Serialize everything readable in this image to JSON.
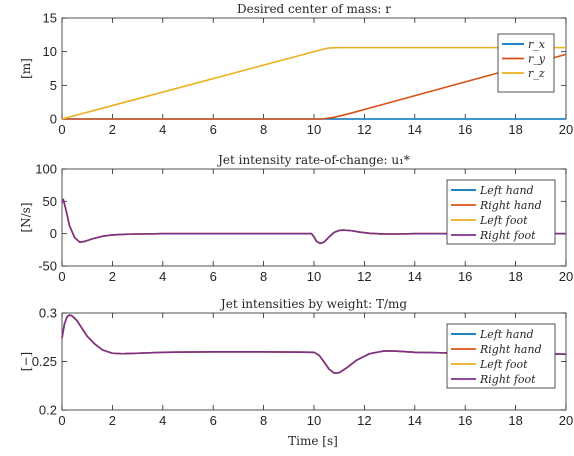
{
  "xlabel": "Time [s]",
  "chart_data": [
    {
      "type": "line",
      "title": "Desired center of mass: r",
      "ylabel": "[m]",
      "xlim": [
        0,
        20
      ],
      "ylim": [
        0,
        15
      ],
      "xticks": [
        0,
        2,
        4,
        6,
        8,
        10,
        12,
        14,
        16,
        18,
        20
      ],
      "yticks": [
        0,
        5,
        10,
        15
      ],
      "ytick_labels": [
        "0",
        "5",
        "10",
        "15"
      ],
      "legend_position": "top-right",
      "series": [
        {
          "name": "r_x",
          "color": "#0072BD",
          "x": [
            0,
            20
          ],
          "y": [
            0,
            0
          ]
        },
        {
          "name": "r_y",
          "color": "#D95319",
          "x": [
            0,
            10.3,
            10.8,
            11.5,
            20
          ],
          "y": [
            0,
            0,
            0.25,
            0.9,
            9.6
          ]
        },
        {
          "name": "r_z",
          "color": "#EDB120",
          "x": [
            0,
            10.3,
            10.6,
            11.0,
            20
          ],
          "y": [
            0,
            10.3,
            10.55,
            10.6,
            10.6
          ]
        }
      ]
    },
    {
      "type": "line",
      "title": "Jet intensity rate-of-change: u₁*",
      "ylabel": "[N/s]",
      "xlim": [
        0,
        20
      ],
      "ylim": [
        -50,
        100
      ],
      "xticks": [
        0,
        2,
        4,
        6,
        8,
        10,
        12,
        14,
        16,
        18,
        20
      ],
      "yticks": [
        -50,
        0,
        50,
        100
      ],
      "ytick_labels": [
        "-50",
        "0",
        "50",
        "100"
      ],
      "legend_position": "top-right",
      "series": [
        {
          "name": "Left hand",
          "color": "#0072BD",
          "x": [
            0,
            0.05,
            0.15,
            0.3,
            0.5,
            0.7,
            0.9,
            1.2,
            1.6,
            2.0,
            2.5,
            3.0,
            4.0,
            6.0,
            8.0,
            9.9,
            10.0,
            10.1,
            10.25,
            10.4,
            10.6,
            10.8,
            11.0,
            11.2,
            11.5,
            11.8,
            12.2,
            12.7,
            13.2,
            14.0,
            16.0,
            18.0,
            20.0
          ],
          "y": [
            48,
            53,
            38,
            12,
            -6,
            -13,
            -12,
            -8,
            -4,
            -2,
            -1,
            -0.5,
            0,
            0,
            0,
            0,
            -5,
            -12,
            -15,
            -13,
            -5,
            2,
            5,
            5.5,
            4.5,
            2.5,
            0.5,
            -0.5,
            -0.5,
            0,
            0,
            0,
            0
          ]
        },
        {
          "name": "Right hand",
          "color": "#D95319",
          "x": [
            0,
            0.05,
            0.15,
            0.3,
            0.5,
            0.7,
            0.9,
            1.2,
            1.6,
            2.0,
            2.5,
            3.0,
            4.0,
            6.0,
            8.0,
            9.9,
            10.0,
            10.1,
            10.25,
            10.4,
            10.6,
            10.8,
            11.0,
            11.2,
            11.5,
            11.8,
            12.2,
            12.7,
            13.2,
            14.0,
            16.0,
            18.0,
            20.0
          ],
          "y": [
            48,
            53,
            38,
            12,
            -6,
            -13,
            -12,
            -8,
            -4,
            -2,
            -1,
            -0.5,
            0,
            0,
            0,
            0,
            -5,
            -12,
            -15,
            -13,
            -5,
            2,
            5,
            5.5,
            4.5,
            2.5,
            0.5,
            -0.5,
            -0.5,
            0,
            0,
            0,
            0
          ]
        },
        {
          "name": "Left foot",
          "color": "#EDB120",
          "x": [
            0,
            0.05,
            0.15,
            0.3,
            0.5,
            0.7,
            0.9,
            1.2,
            1.6,
            2.0,
            2.5,
            3.0,
            4.0,
            6.0,
            8.0,
            9.9,
            10.0,
            10.1,
            10.25,
            10.4,
            10.6,
            10.8,
            11.0,
            11.2,
            11.5,
            11.8,
            12.2,
            12.7,
            13.2,
            14.0,
            16.0,
            18.0,
            20.0
          ],
          "y": [
            48,
            53,
            38,
            12,
            -6,
            -13,
            -12,
            -8,
            -4,
            -2,
            -1,
            -0.5,
            0,
            0,
            0,
            0,
            -5,
            -12,
            -15,
            -13,
            -5,
            2,
            5,
            5.5,
            4.5,
            2.5,
            0.5,
            -0.5,
            -0.5,
            0,
            0,
            0,
            0
          ]
        },
        {
          "name": "Right foot",
          "color": "#7E2F8E",
          "x": [
            0,
            0.05,
            0.15,
            0.3,
            0.5,
            0.7,
            0.9,
            1.2,
            1.6,
            2.0,
            2.5,
            3.0,
            4.0,
            6.0,
            8.0,
            9.9,
            10.0,
            10.1,
            10.25,
            10.4,
            10.6,
            10.8,
            11.0,
            11.2,
            11.5,
            11.8,
            12.2,
            12.7,
            13.2,
            14.0,
            16.0,
            18.0,
            20.0
          ],
          "y": [
            48,
            53,
            38,
            12,
            -6,
            -13,
            -12,
            -8,
            -4,
            -2,
            -1,
            -0.5,
            0,
            0,
            0,
            0,
            -5,
            -12,
            -15,
            -13,
            -5,
            2,
            5,
            5.5,
            4.5,
            2.5,
            0.5,
            -0.5,
            -0.5,
            0,
            0,
            0,
            0
          ]
        }
      ]
    },
    {
      "type": "line",
      "title": "Jet intensities by weight: T/mg",
      "ylabel": "[−]",
      "xlim": [
        0,
        20
      ],
      "ylim": [
        0.2,
        0.3
      ],
      "xticks": [
        0,
        2,
        4,
        6,
        8,
        10,
        12,
        14,
        16,
        18,
        20
      ],
      "yticks": [
        0.2,
        0.25,
        0.3
      ],
      "ytick_labels": [
        "0.2",
        "0.25",
        "0.3"
      ],
      "legend_position": "top-right",
      "series": [
        {
          "name": "Left hand",
          "color": "#0072BD",
          "x": [
            0,
            0.1,
            0.2,
            0.3,
            0.4,
            0.6,
            0.8,
            1.0,
            1.3,
            1.6,
            2.0,
            2.4,
            3.0,
            4.0,
            6.0,
            8.0,
            10.0,
            10.2,
            10.4,
            10.6,
            10.8,
            11.0,
            11.3,
            11.7,
            12.2,
            12.8,
            13.4,
            14.0,
            16.0,
            18.0,
            20.0
          ],
          "y": [
            0.274,
            0.289,
            0.296,
            0.298,
            0.297,
            0.292,
            0.284,
            0.276,
            0.268,
            0.262,
            0.2585,
            0.258,
            0.2585,
            0.2595,
            0.26,
            0.26,
            0.2595,
            0.2565,
            0.2495,
            0.242,
            0.238,
            0.2385,
            0.2435,
            0.2515,
            0.258,
            0.261,
            0.2605,
            0.2595,
            0.2585,
            0.258,
            0.2575
          ]
        },
        {
          "name": "Right hand",
          "color": "#D95319",
          "x": [
            0,
            0.1,
            0.2,
            0.3,
            0.4,
            0.6,
            0.8,
            1.0,
            1.3,
            1.6,
            2.0,
            2.4,
            3.0,
            4.0,
            6.0,
            8.0,
            10.0,
            10.2,
            10.4,
            10.6,
            10.8,
            11.0,
            11.3,
            11.7,
            12.2,
            12.8,
            13.4,
            14.0,
            16.0,
            18.0,
            20.0
          ],
          "y": [
            0.274,
            0.289,
            0.296,
            0.298,
            0.297,
            0.292,
            0.284,
            0.276,
            0.268,
            0.262,
            0.2585,
            0.258,
            0.2585,
            0.2595,
            0.26,
            0.26,
            0.2595,
            0.2565,
            0.2495,
            0.242,
            0.238,
            0.2385,
            0.2435,
            0.2515,
            0.258,
            0.261,
            0.2605,
            0.2595,
            0.2585,
            0.258,
            0.2575
          ]
        },
        {
          "name": "Left foot",
          "color": "#EDB120",
          "x": [
            0,
            0.1,
            0.2,
            0.3,
            0.4,
            0.6,
            0.8,
            1.0,
            1.3,
            1.6,
            2.0,
            2.4,
            3.0,
            4.0,
            6.0,
            8.0,
            10.0,
            10.2,
            10.4,
            10.6,
            10.8,
            11.0,
            11.3,
            11.7,
            12.2,
            12.8,
            13.4,
            14.0,
            16.0,
            18.0,
            20.0
          ],
          "y": [
            0.274,
            0.289,
            0.296,
            0.298,
            0.297,
            0.292,
            0.284,
            0.276,
            0.268,
            0.262,
            0.2585,
            0.258,
            0.2585,
            0.2595,
            0.26,
            0.26,
            0.2595,
            0.2565,
            0.2495,
            0.242,
            0.238,
            0.2385,
            0.2435,
            0.2515,
            0.258,
            0.261,
            0.2605,
            0.2595,
            0.2585,
            0.258,
            0.2575
          ]
        },
        {
          "name": "Right foot",
          "color": "#7E2F8E",
          "x": [
            0,
            0.1,
            0.2,
            0.3,
            0.4,
            0.6,
            0.8,
            1.0,
            1.3,
            1.6,
            2.0,
            2.4,
            3.0,
            4.0,
            6.0,
            8.0,
            10.0,
            10.2,
            10.4,
            10.6,
            10.8,
            11.0,
            11.3,
            11.7,
            12.2,
            12.8,
            13.4,
            14.0,
            16.0,
            18.0,
            20.0
          ],
          "y": [
            0.274,
            0.289,
            0.296,
            0.298,
            0.297,
            0.292,
            0.284,
            0.276,
            0.268,
            0.262,
            0.2585,
            0.258,
            0.2585,
            0.2595,
            0.26,
            0.26,
            0.2595,
            0.2565,
            0.2495,
            0.242,
            0.238,
            0.2385,
            0.2435,
            0.2515,
            0.258,
            0.261,
            0.2605,
            0.2595,
            0.2585,
            0.258,
            0.2575
          ]
        }
      ]
    }
  ]
}
